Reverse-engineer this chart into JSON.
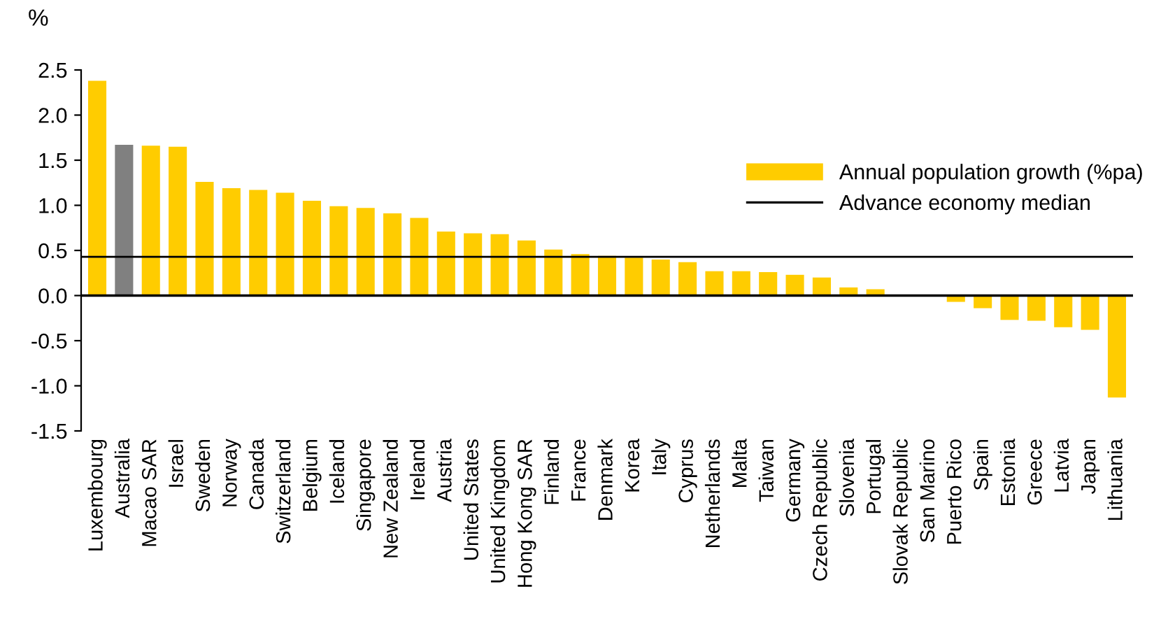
{
  "chart_data": {
    "type": "bar",
    "ylabel": "%",
    "categories": [
      "Luxembourg",
      "Australia",
      "Macao SAR",
      "Israel",
      "Sweden",
      "Norway",
      "Canada",
      "Switzerland",
      "Belgium",
      "Iceland",
      "Singapore",
      "New Zealand",
      "Ireland",
      "Austria",
      "United States",
      "United Kingdom",
      "Hong Kong SAR",
      "Finland",
      "France",
      "Denmark",
      "Korea",
      "Italy",
      "Cyprus",
      "Netherlands",
      "Malta",
      "Taiwan",
      "Germany",
      "Czech Republic",
      "Slovenia",
      "Portugal",
      "Slovak Republic",
      "San Marino",
      "Puerto Rico",
      "Spain",
      "Estonia",
      "Greece",
      "Latvia",
      "Japan",
      "Lithuania"
    ],
    "series": [
      {
        "name": "Annual population growth (%pa)",
        "color": "#ffcc00",
        "colors": [
          "#ffcc00",
          "#808080",
          "#ffcc00",
          "#ffcc00",
          "#ffcc00",
          "#ffcc00",
          "#ffcc00",
          "#ffcc00",
          "#ffcc00",
          "#ffcc00",
          "#ffcc00",
          "#ffcc00",
          "#ffcc00",
          "#ffcc00",
          "#ffcc00",
          "#ffcc00",
          "#ffcc00",
          "#ffcc00",
          "#ffcc00",
          "#ffcc00",
          "#ffcc00",
          "#ffcc00",
          "#ffcc00",
          "#ffcc00",
          "#ffcc00",
          "#ffcc00",
          "#ffcc00",
          "#ffcc00",
          "#ffcc00",
          "#ffcc00",
          "#ffcc00",
          "#ffcc00",
          "#ffcc00",
          "#ffcc00",
          "#ffcc00",
          "#ffcc00",
          "#ffcc00",
          "#ffcc00",
          "#ffcc00"
        ],
        "values": [
          2.38,
          1.67,
          1.66,
          1.65,
          1.26,
          1.19,
          1.17,
          1.14,
          1.05,
          0.99,
          0.97,
          0.91,
          0.86,
          0.71,
          0.69,
          0.68,
          0.61,
          0.51,
          0.46,
          0.44,
          0.42,
          0.4,
          0.37,
          0.27,
          0.27,
          0.26,
          0.23,
          0.2,
          0.09,
          0.07,
          0,
          0,
          -0.07,
          -0.14,
          -0.27,
          -0.28,
          -0.35,
          -0.38,
          -1.13
        ]
      }
    ],
    "ref_lines": [
      {
        "axis": "y",
        "value": 0.43,
        "label": "Advance economy median",
        "color": "#000000"
      }
    ],
    "ylim": [
      -1.5,
      2.5
    ],
    "yticks": [
      {
        "value": -1.5,
        "label": "-1.5"
      },
      {
        "value": -1.0,
        "label": "-1.0"
      },
      {
        "value": -0.5,
        "label": "-0.5"
      },
      {
        "value": 0.0,
        "label": "0.0"
      },
      {
        "value": 0.5,
        "label": "0.5"
      },
      {
        "value": 1.0,
        "label": "1.0"
      },
      {
        "value": 1.5,
        "label": "1.5"
      },
      {
        "value": 2.0,
        "label": "2.0"
      },
      {
        "value": 2.5,
        "label": "2.5"
      }
    ],
    "legend": "right"
  }
}
